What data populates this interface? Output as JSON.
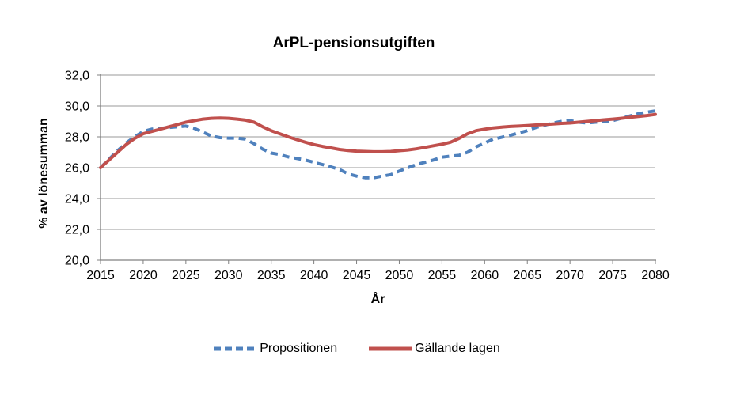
{
  "chart_data": {
    "type": "line",
    "title": "ArPL-pensionsutgiften",
    "xlabel": "År",
    "ylabel": "% av lönesumman",
    "xlim": [
      2015,
      2080
    ],
    "ylim": [
      20,
      32
    ],
    "grid": true,
    "legend_position": "bottom",
    "x_ticks": [
      2015,
      2020,
      2025,
      2030,
      2035,
      2040,
      2045,
      2050,
      2055,
      2060,
      2065,
      2070,
      2075,
      2080
    ],
    "y_ticks": [
      20,
      22,
      24,
      26,
      28,
      30,
      32
    ],
    "y_tick_labels": [
      "20,0",
      "22,0",
      "24,0",
      "26,0",
      "28,0",
      "30,0",
      "32,0"
    ],
    "x": [
      2015,
      2016,
      2017,
      2018,
      2019,
      2020,
      2021,
      2022,
      2023,
      2024,
      2025,
      2026,
      2027,
      2028,
      2029,
      2030,
      2031,
      2032,
      2033,
      2034,
      2035,
      2036,
      2037,
      2038,
      2039,
      2040,
      2041,
      2042,
      2043,
      2044,
      2045,
      2046,
      2047,
      2048,
      2049,
      2050,
      2051,
      2052,
      2053,
      2054,
      2055,
      2056,
      2057,
      2058,
      2059,
      2060,
      2061,
      2062,
      2063,
      2064,
      2065,
      2066,
      2067,
      2068,
      2069,
      2070,
      2071,
      2072,
      2073,
      2074,
      2075,
      2076,
      2077,
      2078,
      2079,
      2080
    ],
    "series": [
      {
        "name": "Propositionen",
        "color": "#4F81BD",
        "style": "dashed",
        "values": [
          26.0,
          26.55,
          27.1,
          27.6,
          28.0,
          28.35,
          28.5,
          28.55,
          28.6,
          28.65,
          28.7,
          28.55,
          28.3,
          28.05,
          27.95,
          27.92,
          27.92,
          27.85,
          27.55,
          27.2,
          26.95,
          26.85,
          26.7,
          26.6,
          26.5,
          26.35,
          26.2,
          26.05,
          25.88,
          25.6,
          25.45,
          25.35,
          25.35,
          25.45,
          25.55,
          25.78,
          26.0,
          26.2,
          26.35,
          26.5,
          26.68,
          26.75,
          26.8,
          27.0,
          27.35,
          27.6,
          27.85,
          27.97,
          28.1,
          28.25,
          28.4,
          28.6,
          28.75,
          28.9,
          29.0,
          29.05,
          28.95,
          28.9,
          28.95,
          29.0,
          29.05,
          29.2,
          29.35,
          29.5,
          29.6,
          29.68
        ]
      },
      {
        "name": "Gällande lagen",
        "color": "#C0504D",
        "style": "solid",
        "values": [
          26.0,
          26.5,
          27.0,
          27.5,
          27.9,
          28.2,
          28.35,
          28.5,
          28.65,
          28.8,
          28.95,
          29.05,
          29.15,
          29.2,
          29.22,
          29.2,
          29.15,
          29.08,
          28.95,
          28.65,
          28.4,
          28.2,
          28.0,
          27.82,
          27.65,
          27.5,
          27.38,
          27.28,
          27.18,
          27.12,
          27.07,
          27.05,
          27.03,
          27.03,
          27.05,
          27.1,
          27.15,
          27.22,
          27.32,
          27.42,
          27.52,
          27.65,
          27.9,
          28.2,
          28.4,
          28.5,
          28.58,
          28.63,
          28.67,
          28.7,
          28.73,
          28.77,
          28.8,
          28.83,
          28.87,
          28.9,
          28.95,
          29.0,
          29.05,
          29.1,
          29.15,
          29.2,
          29.26,
          29.32,
          29.38,
          29.45
        ]
      }
    ],
    "colors": {
      "gridline": "#999999",
      "axis": "#808080",
      "text": "#000000",
      "background": "#ffffff"
    }
  }
}
